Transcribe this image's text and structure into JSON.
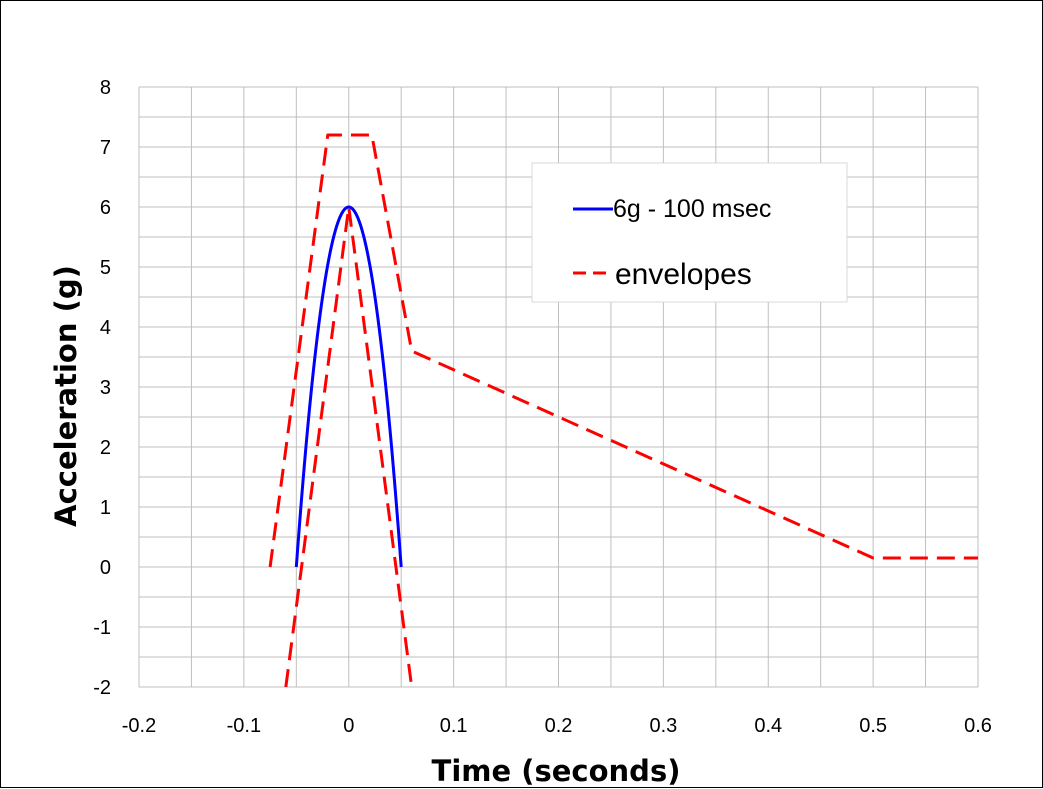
{
  "chart_data": {
    "type": "line",
    "title": "",
    "xlabel": "Time (seconds)",
    "ylabel": "Acceleration (g)",
    "xlim": [
      -0.2,
      0.6
    ],
    "ylim": [
      -2,
      8
    ],
    "x_ticks": [
      "-0.2",
      "-0.1",
      "0",
      "0.1",
      "0.2",
      "0.3",
      "0.4",
      "0.5",
      "0.6"
    ],
    "y_ticks": [
      "8",
      "7",
      "6",
      "5",
      "4",
      "3",
      "2",
      "1",
      "0",
      "-1",
      "-2"
    ],
    "x_ticks_values": [
      -0.2,
      -0.1,
      0,
      0.1,
      0.2,
      0.3,
      0.4,
      0.5,
      0.6
    ],
    "y_ticks_values": [
      8,
      7,
      6,
      5,
      4,
      3,
      2,
      1,
      0,
      -1,
      -2
    ],
    "grid": true,
    "legend_position": "top-right",
    "colors": {
      "pulse": "#0000ff",
      "envelope": "#ff0000",
      "grid": "#bfbfbf"
    },
    "series": [
      {
        "name": "6g - 100 msec",
        "style": "solid",
        "color": "#0000ff",
        "x": [
          -0.05,
          -0.04,
          -0.03,
          -0.02,
          -0.01,
          0,
          0.01,
          0.02,
          0.03,
          0.04,
          0.05
        ],
        "y": [
          0,
          2.16,
          3.84,
          5.04,
          5.76,
          6,
          5.76,
          5.04,
          3.84,
          2.16,
          0
        ]
      },
      {
        "name": "envelopes",
        "style": "dashed",
        "color": "#ff0000",
        "x": [
          -0.075,
          -0.02,
          0.022,
          0.06,
          0.5,
          0.6
        ],
        "y": [
          0,
          7.2,
          7.2,
          3.6,
          0.15,
          0.15
        ]
      },
      {
        "name": "",
        "style": "dashed",
        "color": "#ff0000",
        "x": [
          -0.06,
          0,
          0.06
        ],
        "y": [
          -2,
          6,
          -2
        ]
      }
    ]
  }
}
